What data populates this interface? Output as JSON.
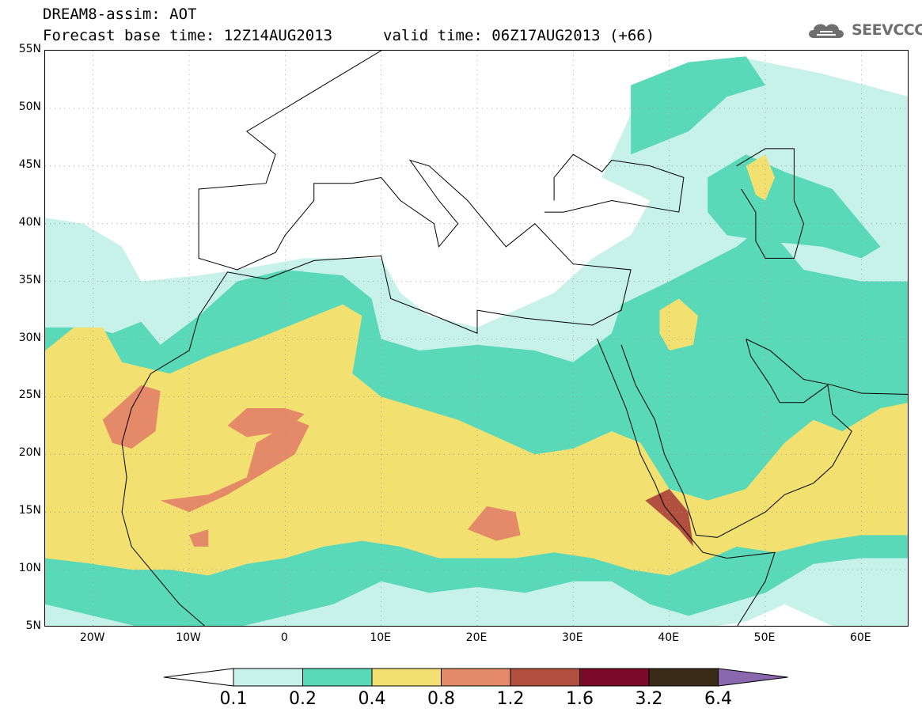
{
  "header": {
    "title": "DREAM8-assim: AOT",
    "base_time": "Forecast base time: 12Z14AUG2013",
    "valid_time": "valid time: 06Z17AUG2013 (+66)"
  },
  "logo": {
    "text": "SEEVCCC",
    "icon": "cloud-icon"
  },
  "map": {
    "lon_range": [
      -25,
      65
    ],
    "lat_range": [
      5,
      55
    ],
    "lat_labels": [
      "55N",
      "50N",
      "45N",
      "40N",
      "35N",
      "30N",
      "25N",
      "20N",
      "15N",
      "10N",
      "5N"
    ],
    "lon_labels": [
      "20W",
      "10W",
      "0",
      "10E",
      "20E",
      "30E",
      "40E",
      "50E",
      "60E"
    ],
    "colors": {
      "c01": "#c6f2ea",
      "c02": "#5ad9b8",
      "c04": "#f2e070",
      "c08": "#e48a68",
      "c12": "#b25040",
      "c16": "#7a0a28",
      "c32": "#3a2a18",
      "c64": "#8a68b0",
      "coast": "#000000"
    }
  },
  "colorbar": {
    "labels": [
      "0.1",
      "0.2",
      "0.4",
      "0.8",
      "1.2",
      "1.6",
      "3.2",
      "6.4"
    ],
    "colors": [
      "#c6f2ea",
      "#5ad9b8",
      "#f2e070",
      "#e48a68",
      "#b25040",
      "#7a0a28",
      "#3a2a18"
    ],
    "under_color": "#ffffff",
    "over_color": "#8a68b0"
  }
}
